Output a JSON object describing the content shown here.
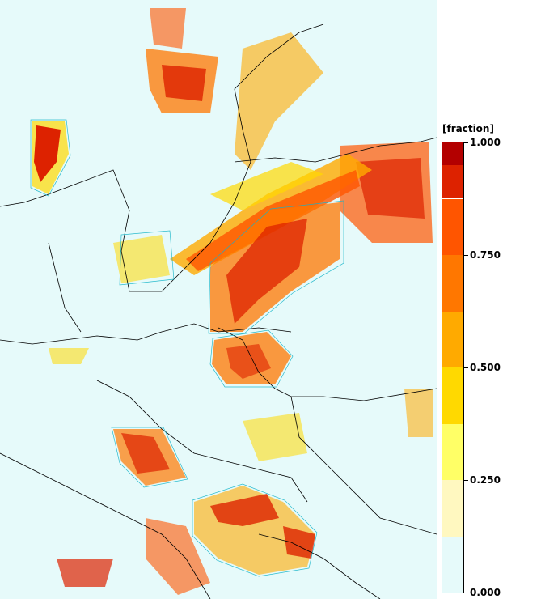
{
  "legend": {
    "title": "[fraction]",
    "ticks": [
      {
        "value": 1.0,
        "label": "1.000"
      },
      {
        "value": 0.75,
        "label": "0.750"
      },
      {
        "value": 0.5,
        "label": "0.500"
      },
      {
        "value": 0.25,
        "label": "0.250"
      },
      {
        "value": 0.0,
        "label": "0.000"
      }
    ],
    "bins": [
      {
        "from": 0.0,
        "to": 0.125,
        "color": "#e6fafa"
      },
      {
        "from": 0.125,
        "to": 0.25,
        "color": "#fff8c0"
      },
      {
        "from": 0.25,
        "to": 0.375,
        "color": "#ffff66"
      },
      {
        "from": 0.375,
        "to": 0.5,
        "color": "#ffd900"
      },
      {
        "from": 0.5,
        "to": 0.625,
        "color": "#ffaa00"
      },
      {
        "from": 0.625,
        "to": 0.75,
        "color": "#ff7700"
      },
      {
        "from": 0.75,
        "to": 0.875,
        "color": "#ff5500"
      },
      {
        "from": 0.875,
        "to": 0.95,
        "color": "#dd2200"
      },
      {
        "from": 0.95,
        "to": 1.0,
        "color": "#b30000"
      }
    ]
  }
}
